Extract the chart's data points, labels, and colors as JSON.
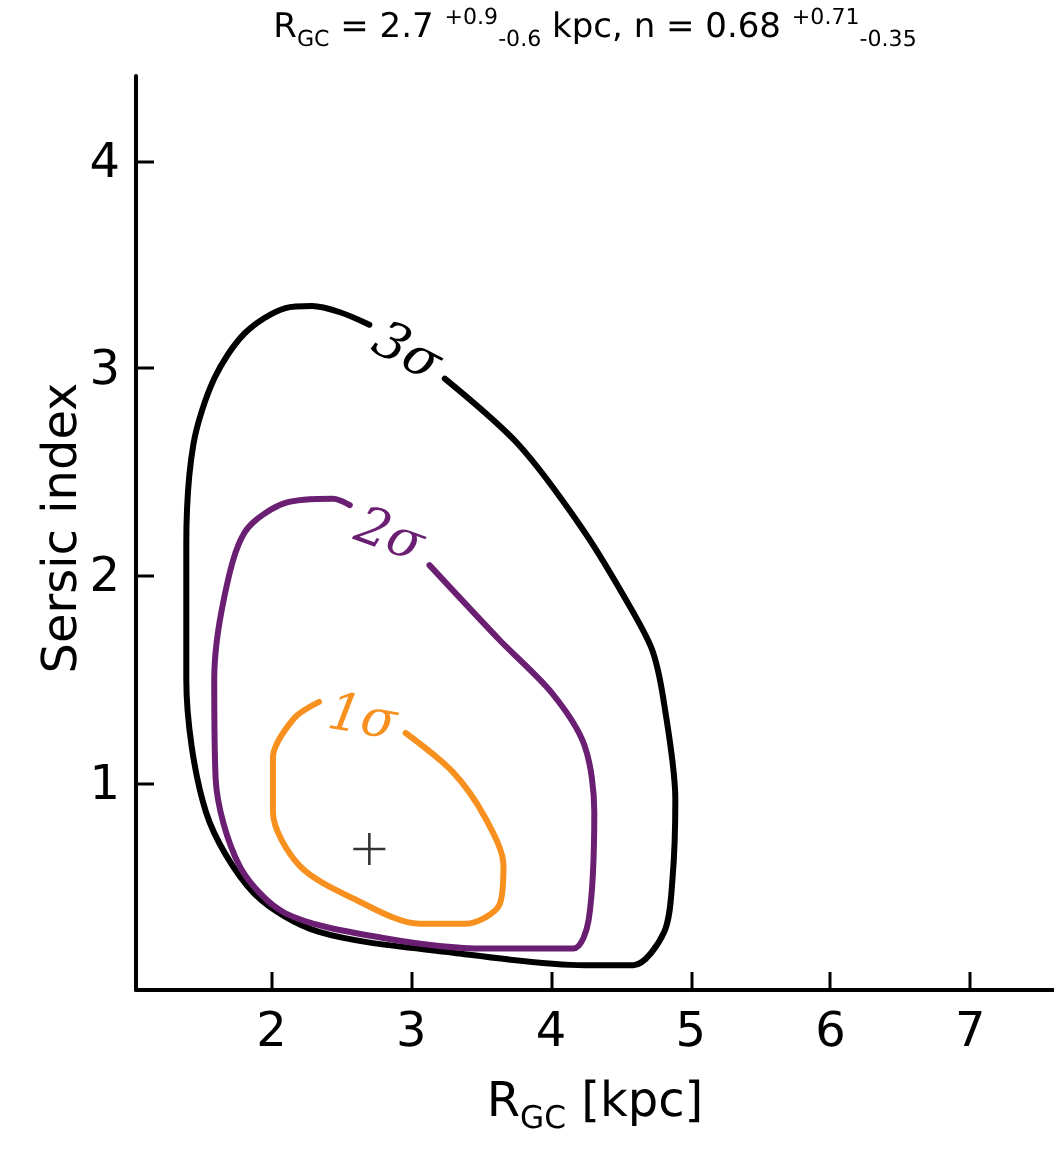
{
  "chart_data": {
    "type": "line",
    "title": "R$_{GC}$ = 2.7 $^{+0.9}$$_{-0.6}$ kpc, n = 0.68 $^{+0.71}$$_{-0.35}$",
    "xlabel": "R$_{GC}$ [kpc]",
    "ylabel": "Sersic index",
    "xlim": [
      1.03,
      7.6
    ],
    "xticks": [
      2,
      3,
      4,
      5,
      6,
      7
    ],
    "ylim": [
      0,
      4.41
    ],
    "yticks": [
      1,
      2,
      3,
      4
    ],
    "grid": false,
    "marker": "none",
    "line_style": "solid",
    "series": [
      {
        "color": "#000000",
        "x": [
          3.24,
          3.77,
          4.24,
          4.59,
          4.73,
          4.81,
          4.89,
          4.87,
          4.81,
          4.59,
          4.24,
          3.3,
          2.34,
          1.87,
          1.53,
          1.39,
          1.39,
          1.44,
          1.59,
          1.81,
          2.1,
          2.29,
          2.49,
          2.7
        ],
        "values": [
          2.95,
          2.63,
          2.21,
          1.82,
          1.63,
          1.38,
          0.92,
          0.54,
          0.28,
          0.12,
          0.12,
          0.18,
          0.28,
          0.47,
          0.86,
          1.5,
          2.15,
          2.63,
          2.95,
          3.17,
          3.29,
          3.3,
          3.27,
          3.21
        ]
      },
      {
        "color": "#6b1f73",
        "x": [
          2.56,
          2.44,
          2.1,
          1.81,
          1.66,
          1.59,
          1.6,
          1.77,
          2.1,
          2.81,
          3.53,
          4.16,
          4.27,
          4.31,
          4.24,
          4.01,
          3.63,
          3.13
        ],
        "values": [
          2.34,
          2.37,
          2.35,
          2.21,
          1.89,
          1.5,
          1.02,
          0.6,
          0.37,
          0.25,
          0.2,
          0.2,
          0.34,
          0.86,
          1.18,
          1.43,
          1.69,
          2.05
        ]
      },
      {
        "color": "#f7901e",
        "x": [
          2.34,
          2.16,
          2.01,
          2.01,
          2.2,
          2.59,
          3.06,
          3.39,
          3.63,
          3.66,
          3.53,
          3.3,
          2.96
        ],
        "values": [
          1.39,
          1.31,
          1.12,
          0.86,
          0.6,
          0.44,
          0.32,
          0.32,
          0.41,
          0.6,
          0.83,
          1.05,
          1.24
        ]
      },
      {
        "type": "scatter",
        "marker": "cross",
        "color": "#000000",
        "x": [
          2.7
        ],
        "values": [
          0.68
        ]
      }
    ],
    "annotations": [
      "3σ",
      "2σ",
      "1σ"
    ]
  }
}
